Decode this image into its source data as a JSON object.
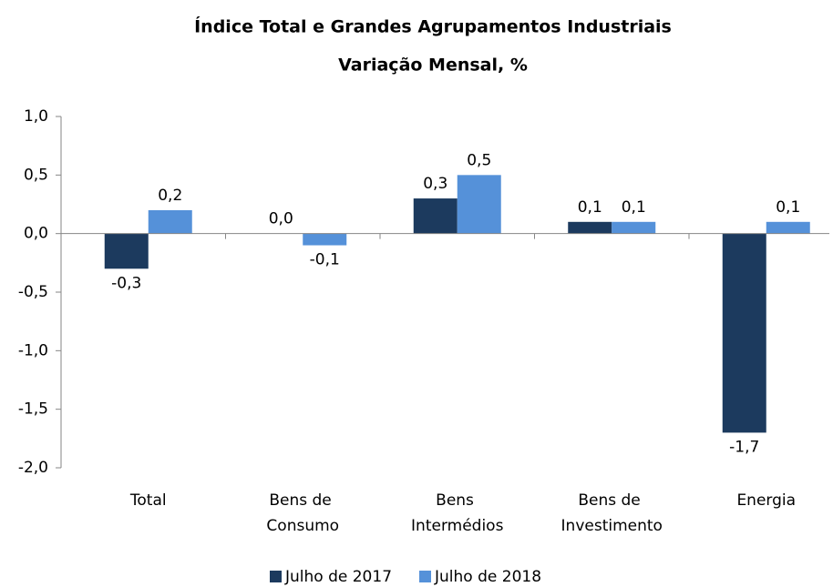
{
  "chart_data": {
    "type": "bar",
    "title": "Índice Total e Grandes Agrupamentos Industriais",
    "subtitle": "Variação Mensal, %",
    "categories": [
      "Total",
      "Bens de Consumo",
      "Bens Intermédios",
      "Bens de Investimento",
      "Energia"
    ],
    "series": [
      {
        "name": "Julho de 2017",
        "color": "#1c3a5e",
        "values": [
          -0.3,
          0.0,
          0.3,
          0.1,
          -1.7
        ],
        "value_labels": [
          "-0,3",
          "0,0",
          "0,3",
          "0,1",
          "-1,7"
        ]
      },
      {
        "name": "Julho de 2018",
        "color": "#5591d9",
        "values": [
          0.2,
          -0.1,
          0.5,
          0.1,
          0.1
        ],
        "value_labels": [
          "0,2",
          "-0,1",
          "0,5",
          "0,1",
          "0,1"
        ]
      }
    ],
    "ylim": [
      -2.0,
      1.0
    ],
    "yticks": [
      {
        "value": -2.0,
        "label": "-2,0"
      },
      {
        "value": -1.5,
        "label": "-1,5"
      },
      {
        "value": -1.0,
        "label": "-1,0"
      },
      {
        "value": -0.5,
        "label": "-0,5"
      },
      {
        "value": 0.0,
        "label": "0,0"
      },
      {
        "value": 0.5,
        "label": "0,5"
      },
      {
        "value": 1.0,
        "label": "1,0"
      }
    ],
    "grid": false,
    "legend": "bottom"
  }
}
